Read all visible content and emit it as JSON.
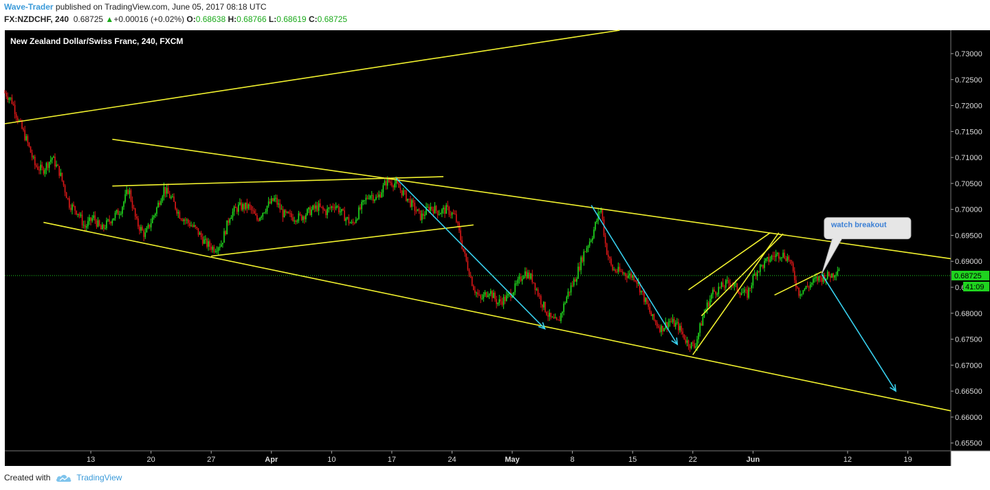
{
  "header": {
    "author": "Wave-Trader",
    "published_text": " published on TradingView.com, June 05, 2017 08:18 UTC",
    "symbol": "FX:NZDCHF, 240",
    "last": "0.68725",
    "change_arrow": "▲",
    "change": "+0.00016 (+0.02%)",
    "o_label": "O:",
    "o_value": "0.68638",
    "h_label": "H:",
    "h_value": "0.68766",
    "l_label": "L:",
    "l_value": "0.68619",
    "c_label": "C:",
    "c_value": "0.68725"
  },
  "footer": {
    "created_with": "Created with",
    "brand": "TradingView",
    "logo_icon": "tradingview-cloud-icon"
  },
  "colors": {
    "background": "#000000",
    "up_candle": "#22e01f",
    "down_candle": "#e01818",
    "trendline": "#f2f22e",
    "arrow": "#38d0ee",
    "price_tag": "#1fd31f",
    "callout_bg": "#e6e6e6",
    "callout_text": "#3a7fd5"
  },
  "chart_data": {
    "type": "candlestick",
    "title": "New Zealand Dollar/Swiss Franc, 240, FXCM",
    "y_axis": {
      "ylim": [
        0.6535,
        0.7345
      ],
      "ticks": [
        "0.73000",
        "0.72500",
        "0.72000",
        "0.71500",
        "0.71000",
        "0.70500",
        "0.70000",
        "0.69500",
        "0.69000",
        "0.68500",
        "0.68000",
        "0.67500",
        "0.67000",
        "0.66500",
        "0.66000",
        "0.65500"
      ],
      "tick_values": [
        0.73,
        0.725,
        0.72,
        0.715,
        0.71,
        0.705,
        0.7,
        0.695,
        0.69,
        0.685,
        0.68,
        0.675,
        0.67,
        0.665,
        0.66,
        0.655
      ],
      "current_price": "0.68725",
      "current_price_value": 0.68725,
      "countdown": "41:09"
    },
    "x_axis": {
      "ticks": [
        {
          "label": "13",
          "day": 13
        },
        {
          "label": "20",
          "day": 20
        },
        {
          "label": "27",
          "day": 27
        },
        {
          "label": "Apr",
          "day": 34,
          "bold": true
        },
        {
          "label": "10",
          "day": 41
        },
        {
          "label": "17",
          "day": 48
        },
        {
          "label": "24",
          "day": 55
        },
        {
          "label": "May",
          "day": 62,
          "bold": true
        },
        {
          "label": "8",
          "day": 69
        },
        {
          "label": "15",
          "day": 76
        },
        {
          "label": "22",
          "day": 83
        },
        {
          "label": "Jun",
          "day": 90,
          "bold": true
        },
        {
          "label": "12",
          "day": 101
        },
        {
          "label": "19",
          "day": 108
        }
      ],
      "xlim_days": [
        3.0,
        113.0
      ]
    },
    "price_path": [
      [
        3.0,
        0.7225
      ],
      [
        3.8,
        0.721
      ],
      [
        4.5,
        0.7175
      ],
      [
        5.6,
        0.713
      ],
      [
        6.5,
        0.7085
      ],
      [
        7.4,
        0.7075
      ],
      [
        8.5,
        0.71
      ],
      [
        9.4,
        0.707
      ],
      [
        10.5,
        0.701
      ],
      [
        11.5,
        0.6995
      ],
      [
        12.3,
        0.6965
      ],
      [
        13.3,
        0.6985
      ],
      [
        14.2,
        0.696
      ],
      [
        15.3,
        0.698
      ],
      [
        16.5,
        0.7
      ],
      [
        17.4,
        0.704
      ],
      [
        18.3,
        0.6975
      ],
      [
        19.3,
        0.695
      ],
      [
        20.5,
        0.6995
      ],
      [
        21.5,
        0.704
      ],
      [
        22.4,
        0.702
      ],
      [
        23.3,
        0.699
      ],
      [
        24.3,
        0.6975
      ],
      [
        25.3,
        0.696
      ],
      [
        26.3,
        0.6935
      ],
      [
        27.3,
        0.6925
      ],
      [
        28.2,
        0.6935
      ],
      [
        29.2,
        0.699
      ],
      [
        30.2,
        0.7005
      ],
      [
        31.4,
        0.7005
      ],
      [
        32.3,
        0.698
      ],
      [
        33.4,
        0.7005
      ],
      [
        34.4,
        0.702
      ],
      [
        35.4,
        0.699
      ],
      [
        36.4,
        0.6985
      ],
      [
        37.4,
        0.6985
      ],
      [
        38.3,
        0.6995
      ],
      [
        39.4,
        0.7005
      ],
      [
        40.3,
        0.6995
      ],
      [
        41.4,
        0.701
      ],
      [
        42.3,
        0.699
      ],
      [
        43.4,
        0.697
      ],
      [
        44.3,
        0.7
      ],
      [
        45.4,
        0.703
      ],
      [
        46.3,
        0.702
      ],
      [
        47.4,
        0.7055
      ],
      [
        48.4,
        0.705
      ],
      [
        49.4,
        0.703
      ],
      [
        50.3,
        0.701
      ],
      [
        51.4,
        0.6985
      ],
      [
        52.4,
        0.7005
      ],
      [
        53.5,
        0.6995
      ],
      [
        54.4,
        0.7
      ],
      [
        55.4,
        0.6985
      ],
      [
        56.4,
        0.6915
      ],
      [
        57.5,
        0.685
      ],
      [
        58.3,
        0.6825
      ],
      [
        59.3,
        0.6845
      ],
      [
        60.3,
        0.682
      ],
      [
        61.4,
        0.683
      ],
      [
        62.4,
        0.685
      ],
      [
        63.4,
        0.688
      ],
      [
        64.4,
        0.6865
      ],
      [
        65.3,
        0.6825
      ],
      [
        66.4,
        0.679
      ],
      [
        67.3,
        0.678
      ],
      [
        68.4,
        0.6835
      ],
      [
        69.4,
        0.687
      ],
      [
        70.3,
        0.6915
      ],
      [
        71.3,
        0.695
      ],
      [
        72.3,
        0.7005
      ],
      [
        72.9,
        0.6925
      ],
      [
        73.6,
        0.6885
      ],
      [
        74.4,
        0.688
      ],
      [
        75.3,
        0.6875
      ],
      [
        76.3,
        0.687
      ],
      [
        77.3,
        0.683
      ],
      [
        78.3,
        0.679
      ],
      [
        79.3,
        0.677
      ],
      [
        80.3,
        0.6785
      ],
      [
        81.3,
        0.6775
      ],
      [
        82.3,
        0.6745
      ],
      [
        83.2,
        0.6735
      ],
      [
        84.3,
        0.68
      ],
      [
        85.3,
        0.684
      ],
      [
        86.3,
        0.685
      ],
      [
        87.3,
        0.686
      ],
      [
        88.3,
        0.6845
      ],
      [
        89.3,
        0.6835
      ],
      [
        90.3,
        0.688
      ],
      [
        91.3,
        0.6895
      ],
      [
        92.3,
        0.691
      ],
      [
        93.3,
        0.6915
      ],
      [
        94.2,
        0.6905
      ],
      [
        95.3,
        0.684
      ],
      [
        96.3,
        0.685
      ],
      [
        97.3,
        0.6865
      ],
      [
        98.3,
        0.687
      ],
      [
        99.3,
        0.6875
      ],
      [
        100.1,
        0.689
      ]
    ],
    "trendlines": [
      {
        "name": "upper-rising-line",
        "points": [
          [
            3.0,
            0.7165
          ],
          [
            74.5,
            0.7345
          ]
        ]
      },
      {
        "name": "channel-upper-line",
        "points": [
          [
            15.5,
            0.7135
          ],
          [
            113.0,
            0.6905
          ]
        ]
      },
      {
        "name": "channel-lower-line",
        "points": [
          [
            7.5,
            0.6975
          ],
          [
            113.0,
            0.6612
          ]
        ]
      },
      {
        "name": "apr-range-top-line",
        "points": [
          [
            15.5,
            0.7045
          ],
          [
            54.0,
            0.7063
          ]
        ]
      },
      {
        "name": "apr-range-bottom-line",
        "points": [
          [
            27.0,
            0.691
          ],
          [
            57.5,
            0.697
          ]
        ]
      },
      {
        "name": "wedge-lower-line",
        "points": [
          [
            83.0,
            0.672
          ],
          [
            93.0,
            0.6955
          ]
        ]
      },
      {
        "name": "wedge-upper-line",
        "points": [
          [
            84.0,
            0.6795
          ],
          [
            93.5,
            0.6953
          ]
        ]
      },
      {
        "name": "wedge-short-top-line",
        "points": [
          [
            82.5,
            0.6845
          ],
          [
            92.0,
            0.6955
          ]
        ]
      },
      {
        "name": "flag-support-line",
        "points": [
          [
            92.5,
            0.6835
          ],
          [
            98.0,
            0.688
          ]
        ]
      }
    ],
    "arrows": [
      {
        "name": "april-decline-arrow",
        "points": [
          [
            48.5,
            0.706
          ],
          [
            65.8,
            0.677
          ]
        ]
      },
      {
        "name": "may-decline-arrow",
        "points": [
          [
            71.2,
            0.7008
          ],
          [
            81.2,
            0.674
          ]
        ]
      },
      {
        "name": "forecast-decline-arrow",
        "points": [
          [
            98.0,
            0.6875
          ],
          [
            106.6,
            0.665
          ]
        ]
      }
    ],
    "annotations": [
      {
        "text": "watch breakout",
        "day": 98.6,
        "price": 0.6963
      }
    ]
  }
}
